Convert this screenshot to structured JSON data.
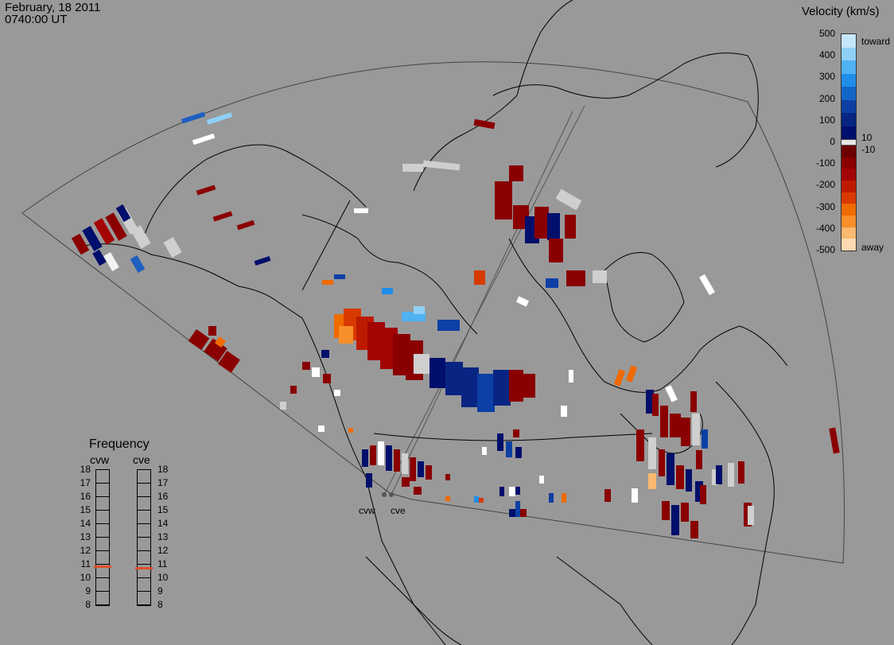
{
  "header": {
    "date": "February, 18 2011",
    "time": "0740:00 UT"
  },
  "colorbar": {
    "title": "Velocity (km/s)",
    "labels": [
      "500",
      "400",
      "300",
      "200",
      "100",
      "0",
      "-100",
      "-200",
      "-300",
      "-400",
      "-500"
    ],
    "inner_labels": [
      "10",
      "-10"
    ],
    "toward_label": "toward",
    "away_label": "away",
    "colors_toward": [
      "#c6e6fa",
      "#8fd0f7",
      "#4fb2f2",
      "#1f8ee8",
      "#1465c8",
      "#0d3fa4",
      "#082583",
      "#000f6b"
    ],
    "colors_away": [
      "#6e0000",
      "#8a0000",
      "#a30505",
      "#bd1a00",
      "#d83900",
      "#ef6a00",
      "#f78f2a",
      "#fbb86f",
      "#fdd9b1"
    ],
    "zero_color": "#e8e8e8"
  },
  "frequency": {
    "title": "Frequency",
    "radars": [
      "cvw",
      "cve"
    ],
    "ticks": [
      "18",
      "17",
      "16",
      "15",
      "14",
      "13",
      "12",
      "11",
      "10",
      "9",
      "8"
    ],
    "values": [
      10.8,
      10.7
    ],
    "marker_color": "#e0502a"
  },
  "radars": {
    "west_label": "cvw",
    "east_label": "cve"
  }
}
